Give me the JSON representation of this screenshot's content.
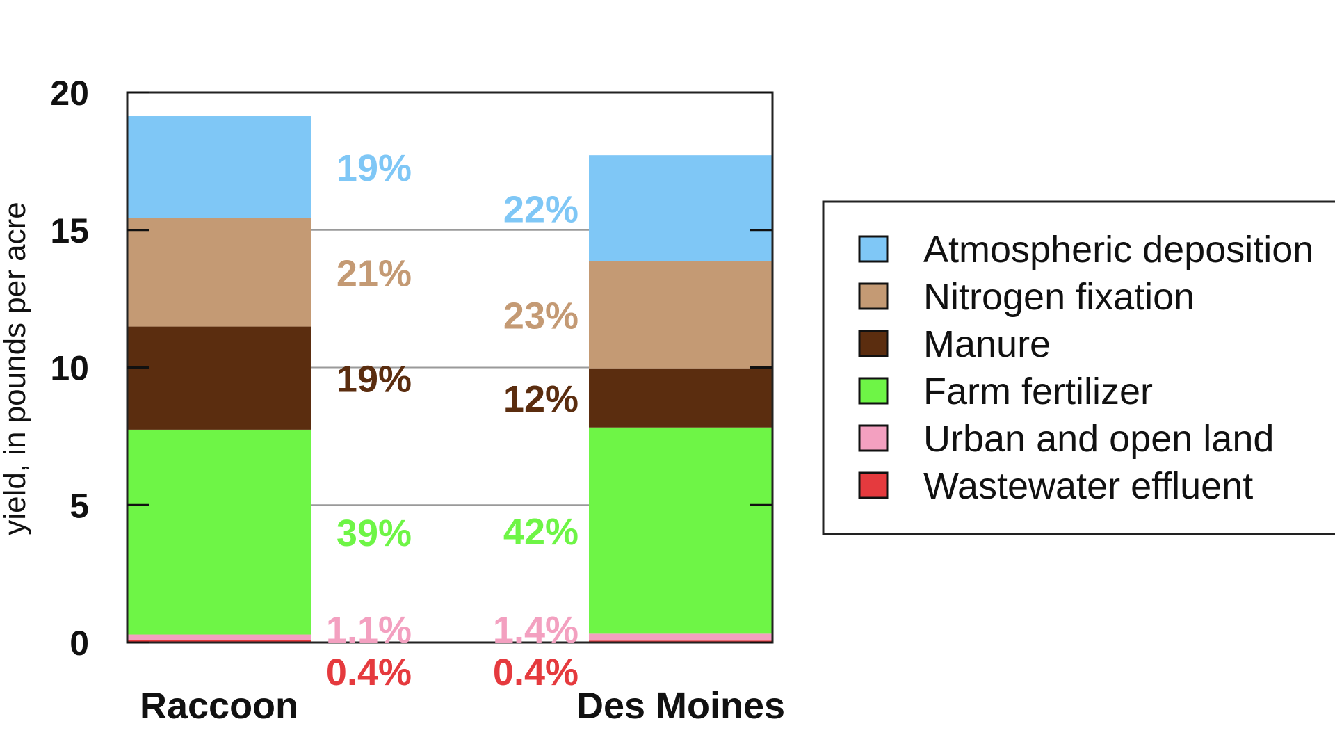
{
  "chart_data": {
    "type": "bar",
    "stacked": true,
    "ylabel": "yield, in pounds per acre",
    "xlabel": "",
    "ylim": [
      0,
      20
    ],
    "yticks": [
      "0",
      "5",
      "10",
      "15",
      "20"
    ],
    "grid": true,
    "legend_position": "right",
    "categories": [
      "Raccoon",
      "Des Moines"
    ],
    "series": [
      {
        "name": "Wastewater effluent",
        "color": "#e53a3e",
        "values": [
          0.08,
          0.07
        ],
        "labels": [
          "0.4%",
          "0.4%"
        ]
      },
      {
        "name": "Urban and open land",
        "color": "#f3a0c0",
        "values": [
          0.21,
          0.25
        ],
        "labels": [
          "1.1%",
          "1.4%"
        ]
      },
      {
        "name": "Farm fertilizer",
        "color": "#6ef546",
        "values": [
          7.45,
          7.5
        ],
        "labels": [
          "39%",
          "42%"
        ]
      },
      {
        "name": "Manure",
        "color": "#5b2d0f",
        "values": [
          3.75,
          2.15
        ],
        "labels": [
          "19%",
          "12%"
        ]
      },
      {
        "name": "Nitrogen fixation",
        "color": "#c49a74",
        "values": [
          3.95,
          3.9
        ],
        "labels": [
          "21%",
          "23%"
        ]
      },
      {
        "name": "Atmospheric deposition",
        "color": "#7fc7f6",
        "values": [
          3.7,
          3.85
        ],
        "labels": [
          "19%",
          "22%"
        ]
      }
    ],
    "legend_order": [
      "Atmospheric deposition",
      "Nitrogen fixation",
      "Manure",
      "Farm fertilizer",
      "Urban and open land",
      "Wastewater effluent"
    ]
  }
}
